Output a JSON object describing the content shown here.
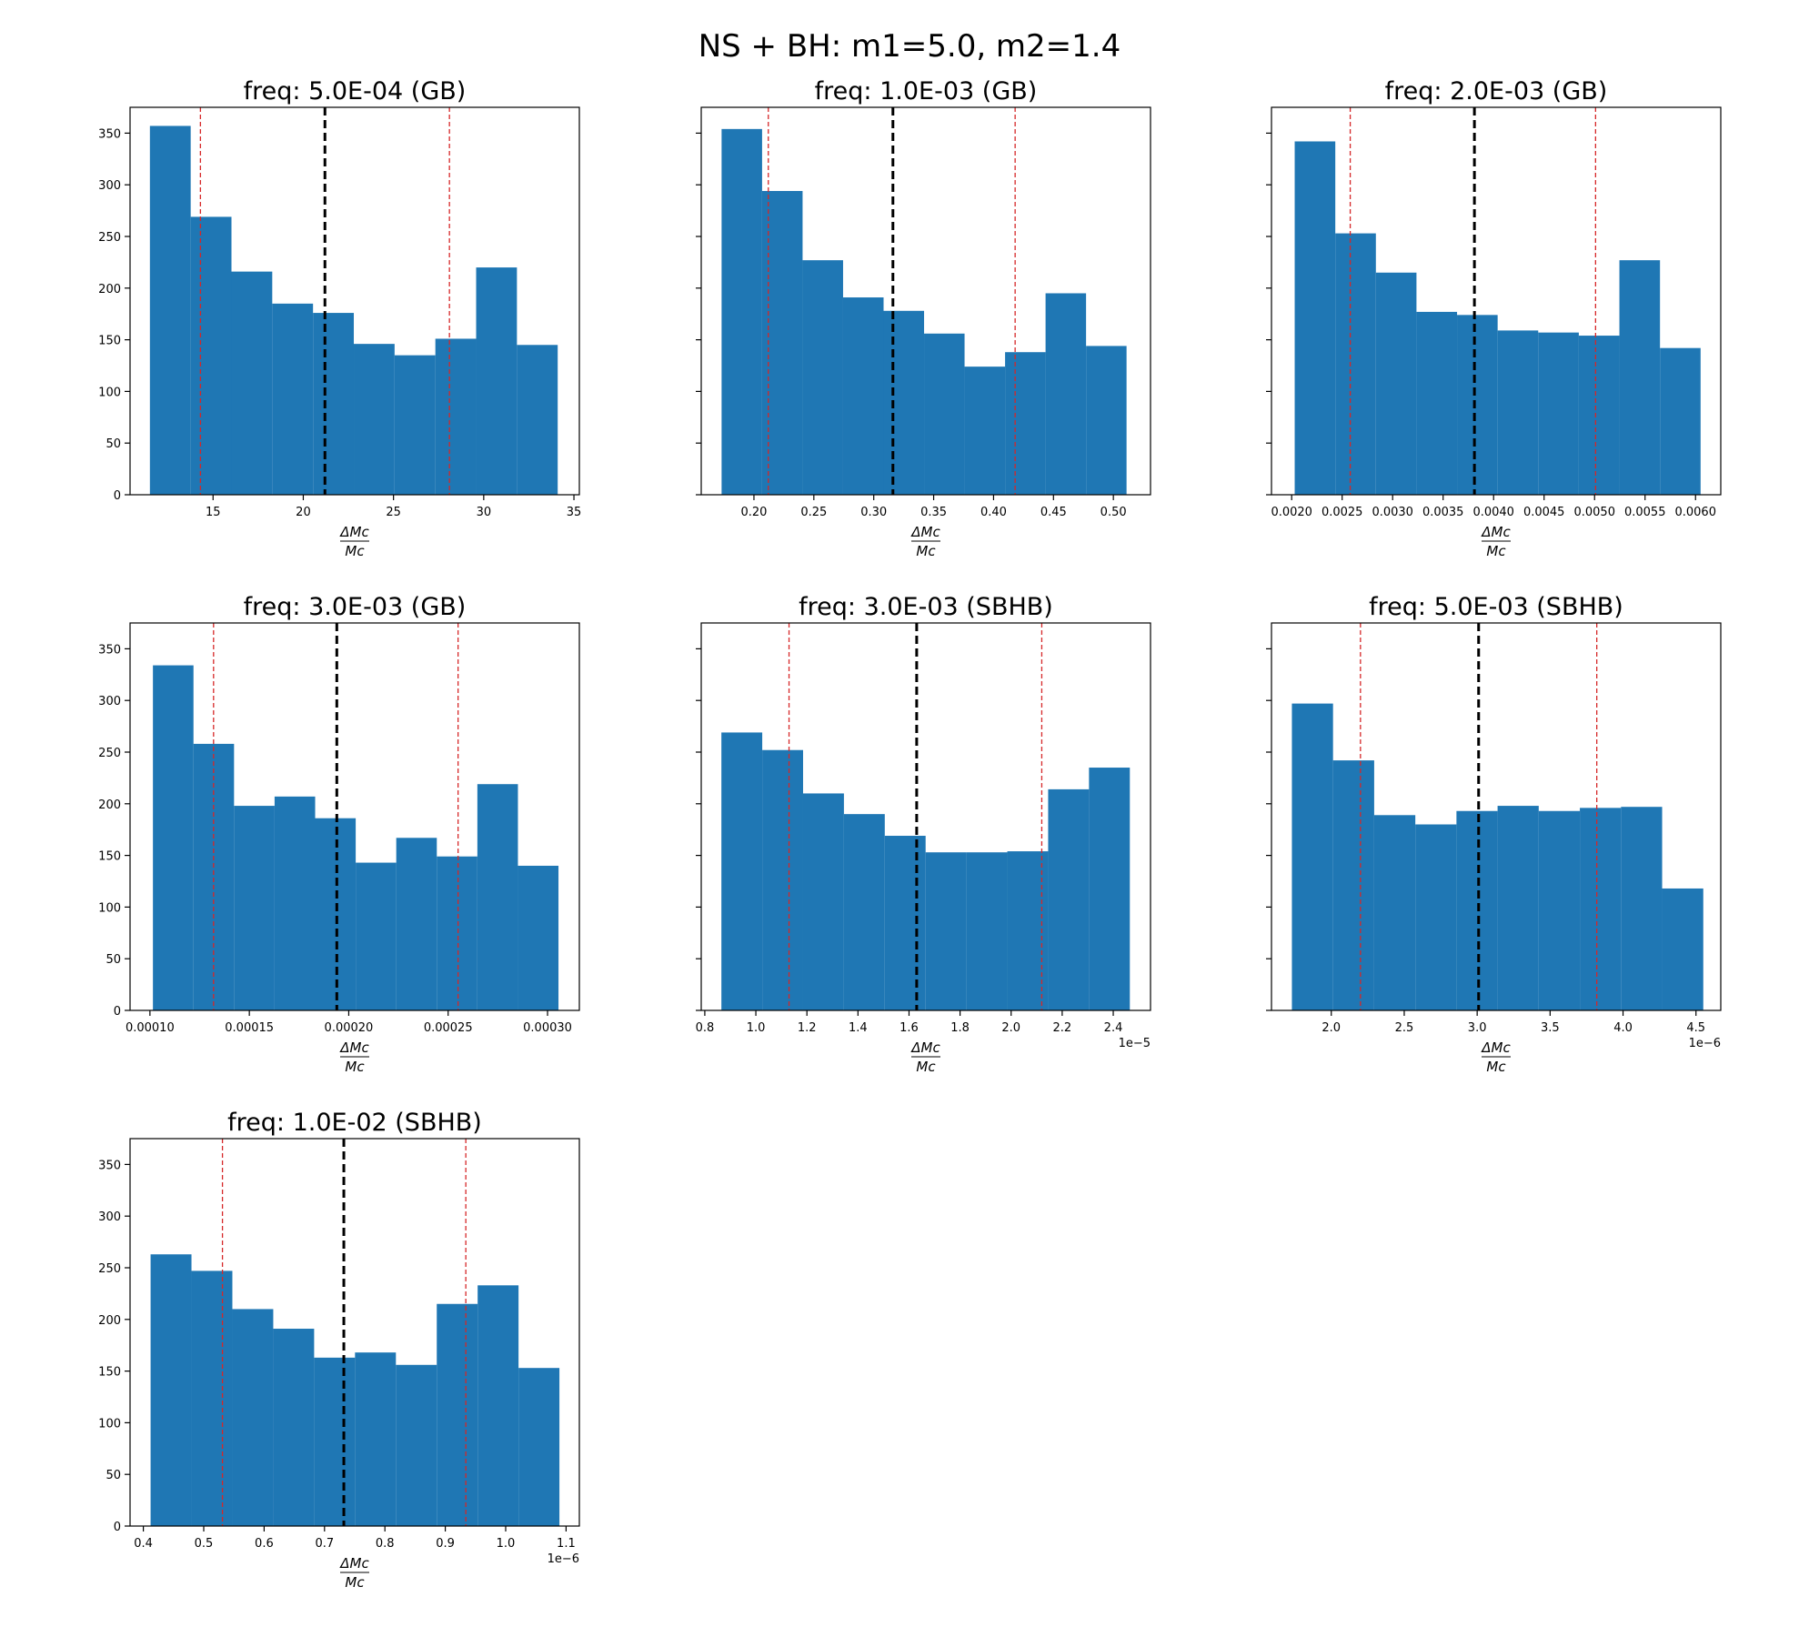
{
  "figure": {
    "suptitle": "NS + BH: m1=5.0, m2=1.4",
    "colors": {
      "bar": "#1f77b4",
      "median_line": "#000000",
      "interval_line": "#d62728",
      "axes": "#000000"
    }
  },
  "chart_data": [
    {
      "type": "bar",
      "title": "freq: 5.0E-04 (GB)",
      "xlabel_num": "ΔMc",
      "xlabel_den": "Mc",
      "offset_label": "",
      "xlim": [
        10.4,
        35.3
      ],
      "ylim": [
        0,
        375
      ],
      "xticks": [
        15,
        20,
        25,
        30,
        35
      ],
      "xtick_labels": [
        "15",
        "20",
        "25",
        "30",
        "35"
      ],
      "yticks": [
        0,
        50,
        100,
        150,
        200,
        250,
        300,
        350
      ],
      "ytick_labels_visible": true,
      "bin_edges": [
        11.5,
        13.76,
        16.02,
        18.28,
        20.54,
        22.8,
        25.06,
        27.32,
        29.58,
        31.84,
        34.1
      ],
      "counts": [
        357,
        269,
        216,
        185,
        176,
        146,
        135,
        151,
        220,
        145
      ],
      "median": 21.2,
      "lower": 14.3,
      "upper": 28.1
    },
    {
      "type": "bar",
      "title": "freq: 1.0E-03 (GB)",
      "xlabel_num": "ΔMc",
      "xlabel_den": "Mc",
      "offset_label": "",
      "xlim": [
        0.156,
        0.531
      ],
      "ylim": [
        0,
        375
      ],
      "xticks": [
        0.2,
        0.25,
        0.3,
        0.35,
        0.4,
        0.45,
        0.5
      ],
      "xtick_labels": [
        "0.20",
        "0.25",
        "0.30",
        "0.35",
        "0.40",
        "0.45",
        "0.50"
      ],
      "yticks": [
        0,
        50,
        100,
        150,
        200,
        250,
        300,
        350
      ],
      "ytick_labels_visible": false,
      "bin_edges": [
        0.173,
        0.2068,
        0.2406,
        0.2744,
        0.3082,
        0.342,
        0.3758,
        0.4096,
        0.4434,
        0.4772,
        0.511
      ],
      "counts": [
        354,
        294,
        227,
        191,
        178,
        156,
        124,
        138,
        195,
        144
      ],
      "median": 0.316,
      "lower": 0.212,
      "upper": 0.418
    },
    {
      "type": "bar",
      "title": "freq: 2.0E-03 (GB)",
      "xlabel_num": "ΔMc",
      "xlabel_den": "Mc",
      "offset_label": "",
      "xlim": [
        0.0018,
        0.00625
      ],
      "ylim": [
        0,
        375
      ],
      "xticks": [
        0.002,
        0.0025,
        0.003,
        0.0035,
        0.004,
        0.0045,
        0.005,
        0.0055,
        0.006
      ],
      "xtick_labels": [
        "0.0020",
        "0.0025",
        "0.0030",
        "0.0035",
        "0.0040",
        "0.0045",
        "0.0050",
        "0.0055",
        "0.0060"
      ],
      "yticks": [
        0,
        50,
        100,
        150,
        200,
        250,
        300,
        350
      ],
      "ytick_labels_visible": false,
      "bin_edges": [
        0.00203,
        0.002432,
        0.002834,
        0.003236,
        0.003638,
        0.00404,
        0.004442,
        0.004844,
        0.005246,
        0.005648,
        0.00605
      ],
      "counts": [
        342,
        253,
        215,
        177,
        174,
        159,
        157,
        154,
        227,
        142
      ],
      "median": 0.00381,
      "lower": 0.00258,
      "upper": 0.00501
    },
    {
      "type": "bar",
      "title": "freq: 3.0E-03 (GB)",
      "xlabel_num": "ΔMc",
      "xlabel_den": "Mc",
      "offset_label": "",
      "xlim": [
        9e-05,
        0.000316
      ],
      "ylim": [
        0,
        375
      ],
      "xticks": [
        0.0001,
        0.00015,
        0.0002,
        0.00025,
        0.0003
      ],
      "xtick_labels": [
        "0.00010",
        "0.00015",
        "0.00020",
        "0.00025",
        "0.00030"
      ],
      "yticks": [
        0,
        50,
        100,
        150,
        200,
        250,
        300,
        350
      ],
      "ytick_labels_visible": true,
      "bin_edges": [
        0.0001015,
        0.0001219,
        0.0001423,
        0.0001627,
        0.0001831,
        0.0002035,
        0.0002239,
        0.0002443,
        0.0002647,
        0.0002851,
        0.0003055
      ],
      "counts": [
        334,
        258,
        198,
        207,
        186,
        143,
        167,
        149,
        219,
        140
      ],
      "median": 0.000194,
      "lower": 0.000132,
      "upper": 0.000255
    },
    {
      "type": "bar",
      "title": "freq: 3.0E-03 (SBHB)",
      "xlabel_num": "ΔMc",
      "xlabel_den": "Mc",
      "offset_label": "1e−5",
      "xlim": [
        0.786,
        2.546
      ],
      "ylim": [
        0,
        375
      ],
      "xticks": [
        0.8,
        1.0,
        1.2,
        1.4,
        1.6,
        1.8,
        2.0,
        2.2,
        2.4
      ],
      "xtick_labels": [
        "0.8",
        "1.0",
        "1.2",
        "1.4",
        "1.6",
        "1.8",
        "2.0",
        "2.2",
        "2.4"
      ],
      "yticks": [
        0,
        50,
        100,
        150,
        200,
        250,
        300,
        350
      ],
      "ytick_labels_visible": false,
      "bin_edges": [
        0.865,
        1.025,
        1.185,
        1.345,
        1.505,
        1.665,
        1.825,
        1.985,
        2.145,
        2.305,
        2.465
      ],
      "counts": [
        269,
        252,
        210,
        190,
        169,
        153,
        153,
        154,
        214,
        235
      ],
      "median": 1.63,
      "lower": 1.13,
      "upper": 2.12
    },
    {
      "type": "bar",
      "title": "freq: 5.0E-03 (SBHB)",
      "xlabel_num": "ΔMc",
      "xlabel_den": "Mc",
      "offset_label": "1e−6",
      "xlim": [
        1.59,
        4.67
      ],
      "ylim": [
        0,
        375
      ],
      "xticks": [
        2.0,
        2.5,
        3.0,
        3.5,
        4.0,
        4.5
      ],
      "xtick_labels": [
        "2.0",
        "2.5",
        "3.0",
        "3.5",
        "4.0",
        "4.5"
      ],
      "yticks": [
        0,
        50,
        100,
        150,
        200,
        250,
        300,
        350
      ],
      "ytick_labels_visible": false,
      "bin_edges": [
        1.73,
        2.012,
        2.294,
        2.576,
        2.858,
        3.14,
        3.422,
        3.704,
        3.986,
        4.268,
        4.55
      ],
      "counts": [
        297,
        242,
        189,
        180,
        193,
        198,
        193,
        196,
        197,
        118
      ],
      "median": 3.01,
      "lower": 2.2,
      "upper": 3.82
    },
    {
      "type": "bar",
      "title": "freq: 1.0E-02 (SBHB)",
      "xlabel_num": "ΔMc",
      "xlabel_den": "Mc",
      "offset_label": "1e−6",
      "xlim": [
        0.378,
        1.122
      ],
      "ylim": [
        0,
        375
      ],
      "xticks": [
        0.4,
        0.5,
        0.6,
        0.7,
        0.8,
        0.9,
        1.0,
        1.1
      ],
      "xtick_labels": [
        "0.4",
        "0.5",
        "0.6",
        "0.7",
        "0.8",
        "0.9",
        "1.0",
        "1.1"
      ],
      "yticks": [
        0,
        50,
        100,
        150,
        200,
        250,
        300,
        350
      ],
      "ytick_labels_visible": true,
      "bin_edges": [
        0.412,
        0.4797,
        0.5474,
        0.6151,
        0.6828,
        0.7505,
        0.8182,
        0.8859,
        0.9536,
        1.0213,
        1.089
      ],
      "counts": [
        263,
        247,
        210,
        191,
        163,
        168,
        156,
        215,
        233,
        153
      ],
      "median": 0.732,
      "lower": 0.531,
      "upper": 0.934
    }
  ]
}
